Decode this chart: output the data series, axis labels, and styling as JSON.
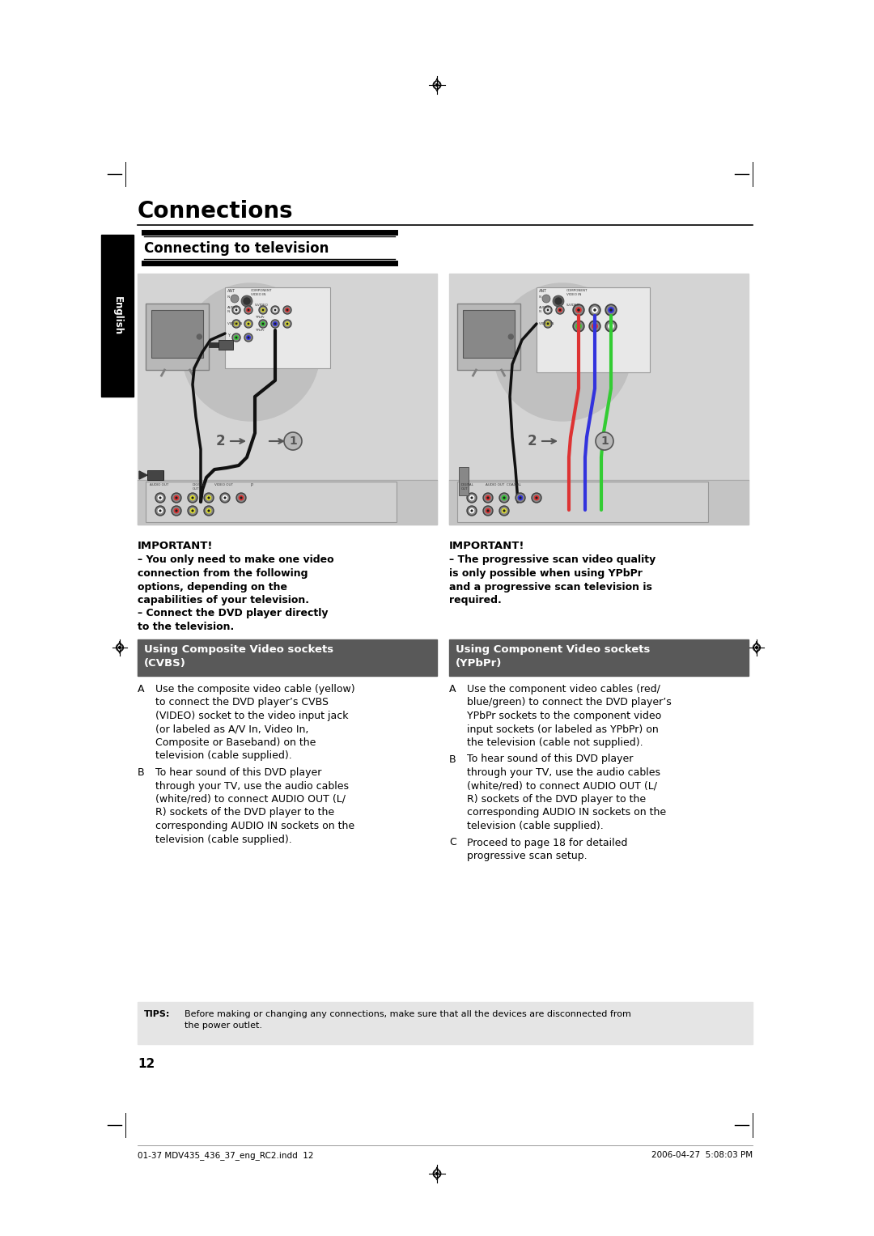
{
  "page_bg": "#ffffff",
  "title": "Connections",
  "section_header": "Connecting to television",
  "sidebar_label": "English",
  "sidebar_bg": "#000000",
  "sidebar_text_color": "#ffffff",
  "cvbs_header": "Using Composite Video sockets\n(CVBS)",
  "ypbpr_header": "Using Component Video sockets\n(YPbPr)",
  "header_bg": "#595959",
  "header_text_color": "#ffffff",
  "important_left_title": "IMPORTANT!",
  "important_left_body": "– You only need to make one video\nconnection from the following\noptions, depending on the\ncapabilities of your television.\n– Connect the DVD player directly\nto the television.",
  "important_right_title": "IMPORTANT!",
  "important_right_body": "– The progressive scan video quality\nis only possible when using YPbPr\nand a progressive scan television is\nrequired.",
  "cvbs_text_A_label": "A",
  "cvbs_text_A": "Use the composite video cable (yellow)\nto connect the DVD player’s CVBS\n(VIDEO) socket to the video input jack\n(or labeled as A/V In, Video In,\nComposite or Baseband) on the\ntelevision (cable supplied).",
  "cvbs_text_B_label": "B",
  "cvbs_text_B": "To hear sound of this DVD player\nthrough your TV, use the audio cables\n(white/red) to connect AUDIO OUT (L/\nR) sockets of the DVD player to the\ncorresponding AUDIO IN sockets on the\ntelevision (cable supplied).",
  "ypbpr_text_A_label": "A",
  "ypbpr_text_A": "Use the component video cables (red/\nblue/green) to connect the DVD player’s\nYPbPr sockets to the component video\ninput sockets (or labeled as YPbPr) on\nthe television (cable not supplied).",
  "ypbpr_text_B_label": "B",
  "ypbpr_text_B": "To hear sound of this DVD player\nthrough your TV, use the audio cables\n(white/red) to connect AUDIO OUT (L/\nR) sockets of the DVD player to the\ncorresponding AUDIO IN sockets on the\ntelevision (cable supplied).",
  "ypbpr_text_C_label": "C",
  "ypbpr_text_C": "Proceed to page 18 for detailed\nprogressive scan setup.",
  "tips_label": "TIPS:",
  "tips_text": "Before making or changing any connections, make sure that all the devices are disconnected from\nthe power outlet.",
  "tips_bg": "#e5e5e5",
  "page_number": "12",
  "footer_left": "01-37 MDV435_436_37_eng_RC2.indd  12",
  "footer_right": "2006-04-27  5:08:03 PM",
  "diagram_bg": "#d4d4d4",
  "diagram_inner_bg": "#b8b8b8",
  "panel_bg": "#e0e0e0",
  "tv_body_color": "#c8c8c8"
}
